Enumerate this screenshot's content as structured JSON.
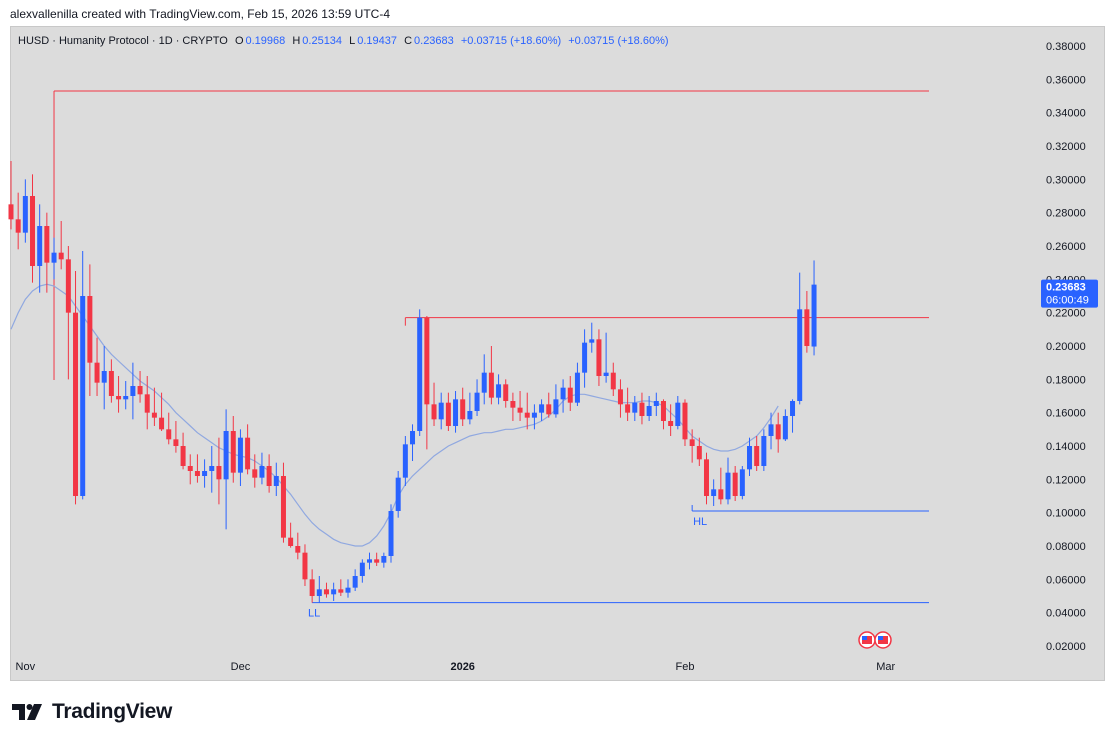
{
  "header": {
    "credit": "alexvallenilla created with TradingView.com, Feb 15, 2026 13:59 UTC-4"
  },
  "legend": {
    "symbol": "HUSD · Humanity Protocol · 1D · CRYPTO",
    "o_label": "O",
    "o": "0.19968",
    "h_label": "H",
    "h": "0.25134",
    "l_label": "L",
    "l": "0.19437",
    "c_label": "C",
    "c": "0.23683",
    "change1": "+0.03715 (+18.60%)",
    "change2": "+0.03715 (+18.60%)"
  },
  "price_tag": {
    "price": "0.23683",
    "countdown": "06:00:49"
  },
  "footer": {
    "brand": "TradingView"
  },
  "colors": {
    "up": "#2962ff",
    "down": "#f23645",
    "ma": "#90a8e0",
    "bg": "#dcdcdc"
  },
  "chart_data": {
    "type": "candlestick",
    "title": "",
    "ylim": [
      0.01,
      0.39
    ],
    "y_ticks": [
      "0.38000",
      "0.36000",
      "0.34000",
      "0.32000",
      "0.30000",
      "0.28000",
      "0.26000",
      "0.24000",
      "0.22000",
      "0.20000",
      "0.18000",
      "0.16000",
      "0.14000",
      "0.12000",
      "0.10000",
      "0.08000",
      "0.06000",
      "0.04000",
      "0.02000"
    ],
    "x_ticks": [
      {
        "label": "Nov",
        "date": "2025-11-01"
      },
      {
        "label": "Dec",
        "date": "2025-12-01"
      },
      {
        "label": "2026",
        "date": "2026-01-01"
      },
      {
        "label": "Feb",
        "date": "2026-02-01"
      },
      {
        "label": "Mar",
        "date": "2026-03-01"
      }
    ],
    "start_date": "2025-10-30",
    "candles": [
      [
        0.285,
        0.311,
        0.27,
        0.276
      ],
      [
        0.276,
        0.292,
        0.258,
        0.268
      ],
      [
        0.268,
        0.3,
        0.262,
        0.29
      ],
      [
        0.29,
        0.303,
        0.238,
        0.248
      ],
      [
        0.248,
        0.285,
        0.232,
        0.272
      ],
      [
        0.272,
        0.28,
        0.232,
        0.25
      ],
      [
        0.25,
        0.265,
        0.24,
        0.256
      ],
      [
        0.256,
        0.275,
        0.246,
        0.252
      ],
      [
        0.252,
        0.26,
        0.18,
        0.22
      ],
      [
        0.22,
        0.245,
        0.105,
        0.11
      ],
      [
        0.11,
        0.257,
        0.108,
        0.23
      ],
      [
        0.23,
        0.249,
        0.17,
        0.19
      ],
      [
        0.19,
        0.205,
        0.17,
        0.178
      ],
      [
        0.178,
        0.2,
        0.162,
        0.185
      ],
      [
        0.185,
        0.192,
        0.166,
        0.17
      ],
      [
        0.17,
        0.182,
        0.16,
        0.168
      ],
      [
        0.168,
        0.179,
        0.162,
        0.17
      ],
      [
        0.17,
        0.19,
        0.156,
        0.176
      ],
      [
        0.176,
        0.185,
        0.166,
        0.171
      ],
      [
        0.171,
        0.182,
        0.15,
        0.16
      ],
      [
        0.16,
        0.175,
        0.152,
        0.157
      ],
      [
        0.157,
        0.172,
        0.149,
        0.15
      ],
      [
        0.15,
        0.16,
        0.141,
        0.144
      ],
      [
        0.144,
        0.155,
        0.136,
        0.14
      ],
      [
        0.14,
        0.148,
        0.126,
        0.128
      ],
      [
        0.128,
        0.135,
        0.117,
        0.125
      ],
      [
        0.125,
        0.135,
        0.118,
        0.122
      ],
      [
        0.122,
        0.132,
        0.115,
        0.125
      ],
      [
        0.125,
        0.14,
        0.112,
        0.128
      ],
      [
        0.128,
        0.145,
        0.105,
        0.12
      ],
      [
        0.12,
        0.162,
        0.09,
        0.149
      ],
      [
        0.149,
        0.158,
        0.118,
        0.124
      ],
      [
        0.124,
        0.15,
        0.116,
        0.145
      ],
      [
        0.145,
        0.153,
        0.123,
        0.126
      ],
      [
        0.126,
        0.135,
        0.115,
        0.121
      ],
      [
        0.121,
        0.136,
        0.117,
        0.128
      ],
      [
        0.128,
        0.135,
        0.112,
        0.116
      ],
      [
        0.116,
        0.13,
        0.11,
        0.122
      ],
      [
        0.122,
        0.13,
        0.082,
        0.085
      ],
      [
        0.085,
        0.094,
        0.079,
        0.08
      ],
      [
        0.08,
        0.088,
        0.072,
        0.076
      ],
      [
        0.076,
        0.081,
        0.056,
        0.06
      ],
      [
        0.06,
        0.066,
        0.046,
        0.05
      ],
      [
        0.05,
        0.062,
        0.046,
        0.054
      ],
      [
        0.054,
        0.058,
        0.049,
        0.051
      ],
      [
        0.051,
        0.058,
        0.047,
        0.054
      ],
      [
        0.054,
        0.06,
        0.05,
        0.052
      ],
      [
        0.052,
        0.06,
        0.049,
        0.055
      ],
      [
        0.055,
        0.066,
        0.053,
        0.062
      ],
      [
        0.062,
        0.072,
        0.058,
        0.07
      ],
      [
        0.07,
        0.076,
        0.066,
        0.072
      ],
      [
        0.072,
        0.076,
        0.068,
        0.07
      ],
      [
        0.07,
        0.076,
        0.067,
        0.074
      ],
      [
        0.074,
        0.105,
        0.07,
        0.101
      ],
      [
        0.101,
        0.125,
        0.097,
        0.121
      ],
      [
        0.121,
        0.146,
        0.116,
        0.141
      ],
      [
        0.141,
        0.153,
        0.131,
        0.149
      ],
      [
        0.149,
        0.222,
        0.146,
        0.217
      ],
      [
        0.217,
        0.218,
        0.138,
        0.165
      ],
      [
        0.165,
        0.178,
        0.152,
        0.156
      ],
      [
        0.156,
        0.172,
        0.15,
        0.166
      ],
      [
        0.166,
        0.172,
        0.149,
        0.152
      ],
      [
        0.152,
        0.173,
        0.148,
        0.168
      ],
      [
        0.168,
        0.175,
        0.152,
        0.156
      ],
      [
        0.156,
        0.172,
        0.153,
        0.161
      ],
      [
        0.161,
        0.18,
        0.158,
        0.172
      ],
      [
        0.172,
        0.195,
        0.165,
        0.184
      ],
      [
        0.184,
        0.2,
        0.165,
        0.169
      ],
      [
        0.169,
        0.183,
        0.165,
        0.177
      ],
      [
        0.177,
        0.18,
        0.163,
        0.167
      ],
      [
        0.167,
        0.172,
        0.155,
        0.163
      ],
      [
        0.163,
        0.173,
        0.155,
        0.16
      ],
      [
        0.16,
        0.172,
        0.15,
        0.157
      ],
      [
        0.157,
        0.165,
        0.15,
        0.16
      ],
      [
        0.16,
        0.168,
        0.155,
        0.165
      ],
      [
        0.165,
        0.172,
        0.157,
        0.159
      ],
      [
        0.159,
        0.177,
        0.157,
        0.168
      ],
      [
        0.168,
        0.18,
        0.16,
        0.175
      ],
      [
        0.175,
        0.182,
        0.161,
        0.166
      ],
      [
        0.166,
        0.19,
        0.164,
        0.184
      ],
      [
        0.184,
        0.21,
        0.175,
        0.202
      ],
      [
        0.202,
        0.214,
        0.196,
        0.204
      ],
      [
        0.204,
        0.21,
        0.176,
        0.182
      ],
      [
        0.182,
        0.208,
        0.178,
        0.184
      ],
      [
        0.184,
        0.19,
        0.17,
        0.174
      ],
      [
        0.174,
        0.18,
        0.157,
        0.165
      ],
      [
        0.165,
        0.175,
        0.155,
        0.16
      ],
      [
        0.16,
        0.17,
        0.155,
        0.166
      ],
      [
        0.166,
        0.172,
        0.153,
        0.158
      ],
      [
        0.158,
        0.17,
        0.155,
        0.164
      ],
      [
        0.164,
        0.172,
        0.158,
        0.167
      ],
      [
        0.167,
        0.168,
        0.15,
        0.155
      ],
      [
        0.155,
        0.165,
        0.146,
        0.152
      ],
      [
        0.152,
        0.17,
        0.15,
        0.166
      ],
      [
        0.166,
        0.168,
        0.14,
        0.144
      ],
      [
        0.144,
        0.15,
        0.13,
        0.14
      ],
      [
        0.14,
        0.145,
        0.128,
        0.132
      ],
      [
        0.132,
        0.136,
        0.105,
        0.11
      ],
      [
        0.11,
        0.12,
        0.104,
        0.114
      ],
      [
        0.114,
        0.127,
        0.105,
        0.108
      ],
      [
        0.108,
        0.133,
        0.105,
        0.124
      ],
      [
        0.124,
        0.128,
        0.107,
        0.11
      ],
      [
        0.11,
        0.128,
        0.108,
        0.126
      ],
      [
        0.126,
        0.145,
        0.122,
        0.14
      ],
      [
        0.14,
        0.146,
        0.125,
        0.128
      ],
      [
        0.128,
        0.15,
        0.125,
        0.146
      ],
      [
        0.146,
        0.16,
        0.138,
        0.153
      ],
      [
        0.153,
        0.16,
        0.136,
        0.144
      ],
      [
        0.144,
        0.162,
        0.143,
        0.158
      ],
      [
        0.158,
        0.168,
        0.148,
        0.167
      ],
      [
        0.167,
        0.244,
        0.165,
        0.222
      ],
      [
        0.222,
        0.233,
        0.196,
        0.2
      ],
      [
        0.19968,
        0.25134,
        0.19437,
        0.23683
      ]
    ],
    "moving_average": {
      "start_index": 0,
      "values": [
        0.21,
        0.22,
        0.228,
        0.233,
        0.236,
        0.237,
        0.236,
        0.233,
        0.23,
        0.224,
        0.218,
        0.212,
        0.206,
        0.2,
        0.195,
        0.191,
        0.187,
        0.183,
        0.179,
        0.176,
        0.173,
        0.169,
        0.165,
        0.16,
        0.156,
        0.152,
        0.148,
        0.145,
        0.142,
        0.139,
        0.137,
        0.135,
        0.134,
        0.133,
        0.131,
        0.128,
        0.125,
        0.121,
        0.116,
        0.111,
        0.105,
        0.099,
        0.094,
        0.09,
        0.087,
        0.084,
        0.082,
        0.081,
        0.08,
        0.08,
        0.082,
        0.086,
        0.092,
        0.1,
        0.11,
        0.117,
        0.122,
        0.126,
        0.13,
        0.134,
        0.137,
        0.14,
        0.142,
        0.144,
        0.146,
        0.147,
        0.148,
        0.148,
        0.149,
        0.15,
        0.15,
        0.151,
        0.152,
        0.153,
        0.155,
        0.158,
        0.162,
        0.167,
        0.17,
        0.171,
        0.171,
        0.17,
        0.169,
        0.168,
        0.167,
        0.166,
        0.166,
        0.166,
        0.167,
        0.167,
        0.166,
        0.164,
        0.16,
        0.156,
        0.151,
        0.146,
        0.143,
        0.14,
        0.138,
        0.137,
        0.137,
        0.138,
        0.14,
        0.143,
        0.146,
        0.151,
        0.157,
        0.164
      ]
    },
    "levels": [
      {
        "price": 0.353,
        "color": "#f23645",
        "from": "2025-11-05",
        "to": "2026-03-01"
      },
      {
        "price": 0.217,
        "color": "#f23645",
        "from": "2025-12-24",
        "to": "2026-03-01"
      },
      {
        "price": 0.101,
        "color": "#2962ff",
        "from": "2026-02-02",
        "to": "2026-03-01",
        "label": "HL",
        "label_price": 0.095
      },
      {
        "price": 0.046,
        "color": "#2962ff",
        "from": "2025-12-11",
        "to": "2026-03-01",
        "label": "LL",
        "label_price": 0.04
      }
    ]
  }
}
